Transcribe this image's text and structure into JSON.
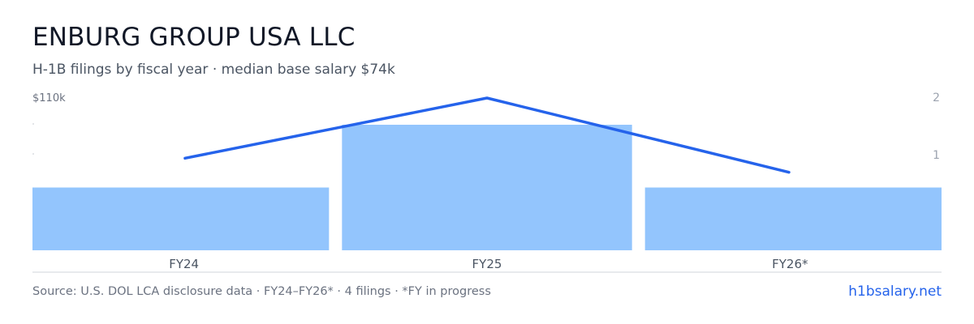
{
  "header": {
    "title": "ENBURG GROUP USA LLC",
    "subtitle": "H-1B filings by fiscal year · median base salary $74k"
  },
  "footer": {
    "source": "Source: U.S. DOL LCA disclosure data · FY24–FY26* · 4 filings · *FY in progress",
    "brand": "h1bsalary.net"
  },
  "colors": {
    "bar": "#93c5fd",
    "line": "#2563eb",
    "axis": "#d1d5db",
    "tick_text": "#9ca3af",
    "category_text": "#4b5563"
  },
  "chart_data": {
    "type": "bar",
    "categories": [
      "FY24",
      "FY25",
      "FY26*"
    ],
    "series": [
      {
        "type": "bar",
        "axis": "right",
        "values": [
          1,
          2,
          1
        ]
      },
      {
        "type": "line",
        "axis": "left",
        "values": [
          80000,
          110000,
          73000
        ]
      }
    ],
    "left_axis": {
      "max_label": "$110k",
      "max": 110000
    },
    "right_axis": {
      "ticks": [
        "2",
        "1"
      ],
      "max": 2
    },
    "grid": false
  }
}
